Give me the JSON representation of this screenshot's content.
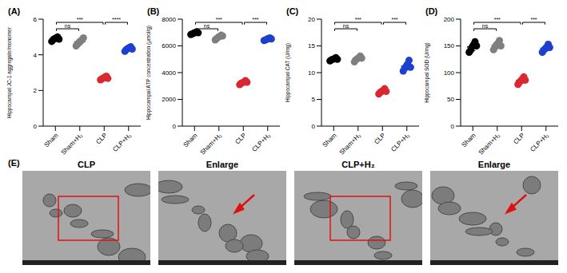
{
  "chart_data": [
    {
      "type": "scatter",
      "title": "(A)",
      "ylabel": "Hippocampal JC-1 aggregate/monomer",
      "categories": [
        "Sham",
        "Sham+H₂",
        "CLP",
        "CLP+H₂"
      ],
      "values": [
        [
          4.75,
          4.85,
          4.9,
          4.95,
          5.0,
          4.88
        ],
        [
          4.5,
          4.6,
          4.7,
          4.75,
          4.85,
          4.95
        ],
        [
          2.6,
          2.65,
          2.7,
          2.75,
          2.8,
          2.68
        ],
        [
          4.2,
          4.3,
          4.35,
          4.4,
          4.45,
          4.32
        ]
      ],
      "error": [
        0.09,
        0.16,
        0.07,
        0.09
      ],
      "colors": [
        "#000000",
        "#7f7f7f",
        "#d9282f",
        "#1f3fcf"
      ],
      "ylim": [
        0,
        6
      ],
      "yticks": [
        0,
        2,
        4,
        6
      ],
      "significance": [
        {
          "groups": [
            "Sham",
            "Sham+H₂"
          ],
          "label": "ns"
        },
        {
          "groups": [
            "Sham",
            "CLP"
          ],
          "label": "***"
        },
        {
          "groups": [
            "CLP",
            "CLP+H₂"
          ],
          "label": "****"
        }
      ]
    },
    {
      "type": "scatter",
      "title": "(B)",
      "ylabel": "Hippocampal ATP concentration (μmol/g)",
      "categories": [
        "Sham",
        "Sham+H₂",
        "CLP",
        "CLP+H₂"
      ],
      "values": [
        [
          6850,
          6900,
          6950,
          7000,
          7050,
          6980
        ],
        [
          6450,
          6550,
          6650,
          6700,
          6800,
          6750
        ],
        [
          3100,
          3200,
          3250,
          3300,
          3400,
          3280
        ],
        [
          6400,
          6450,
          6500,
          6550,
          6600,
          6520
        ]
      ],
      "error": [
        70,
        130,
        100,
        75
      ],
      "colors": [
        "#000000",
        "#7f7f7f",
        "#d9282f",
        "#1f3fcf"
      ],
      "ylim": [
        0,
        8000
      ],
      "yticks": [
        0,
        2000,
        4000,
        6000,
        8000
      ],
      "significance": [
        {
          "groups": [
            "Sham",
            "Sham+H₂"
          ],
          "label": "ns"
        },
        {
          "groups": [
            "Sham",
            "CLP"
          ],
          "label": "***"
        },
        {
          "groups": [
            "CLP",
            "CLP+H₂"
          ],
          "label": "***"
        }
      ]
    },
    {
      "type": "scatter",
      "title": "(C)",
      "ylabel": "Hippocampal CAT (U/mg)",
      "categories": [
        "Sham",
        "Sham+H₂",
        "CLP",
        "CLP+H₂"
      ],
      "values": [
        [
          12.2,
          12.4,
          12.5,
          12.6,
          12.8,
          12.5
        ],
        [
          12.0,
          12.4,
          12.6,
          12.8,
          13.1,
          12.7
        ],
        [
          6.0,
          6.3,
          6.5,
          6.7,
          7.0,
          6.5
        ],
        [
          10.3,
          10.8,
          11.2,
          11.6,
          12.3,
          11.0
        ]
      ],
      "error": [
        0.2,
        0.4,
        0.35,
        0.7
      ],
      "colors": [
        "#000000",
        "#7f7f7f",
        "#d9282f",
        "#1f3fcf"
      ],
      "ylim": [
        0,
        20
      ],
      "yticks": [
        0,
        5,
        10,
        15,
        20
      ],
      "significance": [
        {
          "groups": [
            "Sham",
            "Sham+H₂"
          ],
          "label": "ns"
        },
        {
          "groups": [
            "Sham",
            "CLP"
          ],
          "label": "***"
        },
        {
          "groups": [
            "CLP",
            "CLP+H₂"
          ],
          "label": "***"
        }
      ]
    },
    {
      "type": "scatter",
      "title": "(D)",
      "ylabel": "Hippocampal SOD (U/mg)",
      "categories": [
        "Sham",
        "Sham+H₂",
        "CLP",
        "CLP+H₂"
      ],
      "values": [
        [
          138,
          142,
          148,
          152,
          158,
          150
        ],
        [
          143,
          148,
          152,
          155,
          160,
          150
        ],
        [
          78,
          82,
          85,
          88,
          92,
          86
        ],
        [
          138,
          142,
          145,
          148,
          153,
          147
        ]
      ],
      "error": [
        7,
        6,
        5,
        5
      ],
      "colors": [
        "#000000",
        "#7f7f7f",
        "#d9282f",
        "#1f3fcf"
      ],
      "ylim": [
        0,
        200
      ],
      "yticks": [
        0,
        50,
        100,
        150,
        200
      ],
      "significance": [
        {
          "groups": [
            "Sham",
            "Sham+H₂"
          ],
          "label": "ns"
        },
        {
          "groups": [
            "Sham",
            "CLP"
          ],
          "label": "***"
        },
        {
          "groups": [
            "CLP",
            "CLP+H₂"
          ],
          "label": "***"
        }
      ]
    }
  ],
  "image_panel": {
    "label": "(E)",
    "images": [
      "CLP",
      "Enlarge",
      "CLP+H₂",
      "Enlarge"
    ]
  }
}
